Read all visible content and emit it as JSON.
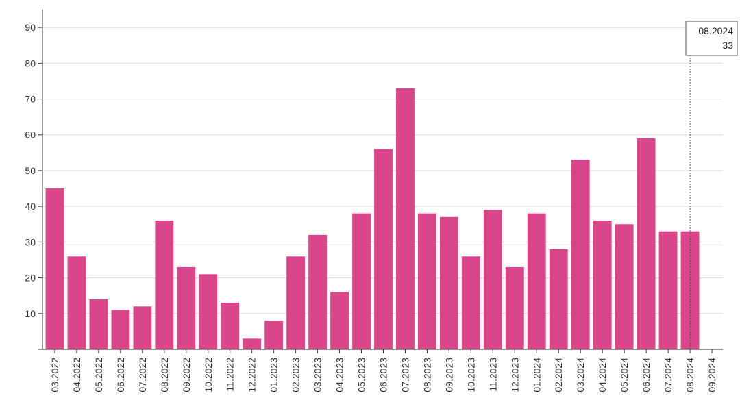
{
  "chart_data": {
    "type": "bar",
    "title": "",
    "xlabel": "",
    "ylabel": "",
    "categories": [
      "03.2022",
      "04.2022",
      "05.2022",
      "06.2022",
      "07.2022",
      "08.2022",
      "09.2022",
      "10.2022",
      "11.2022",
      "12.2022",
      "01.2023",
      "02.2023",
      "03.2023",
      "04.2023",
      "05.2023",
      "06.2023",
      "07.2023",
      "08.2023",
      "09.2023",
      "10.2023",
      "11.2023",
      "12.2023",
      "01.2024",
      "02.2024",
      "03.2024",
      "04.2024",
      "05.2024",
      "06.2024",
      "07.2024",
      "08.2024",
      "09.2024"
    ],
    "values": [
      45,
      26,
      14,
      11,
      12,
      36,
      23,
      21,
      13,
      3,
      8,
      26,
      32,
      16,
      38,
      56,
      73,
      38,
      37,
      26,
      39,
      23,
      38,
      28,
      53,
      36,
      35,
      59,
      33,
      33,
      null
    ],
    "ylim": [
      0,
      95
    ],
    "yticks": [
      10,
      20,
      30,
      40,
      50,
      60,
      70,
      80,
      90
    ],
    "grid": true,
    "bar_color": "#d9468c",
    "tooltip": {
      "category": "08.2024",
      "value": "33"
    }
  }
}
